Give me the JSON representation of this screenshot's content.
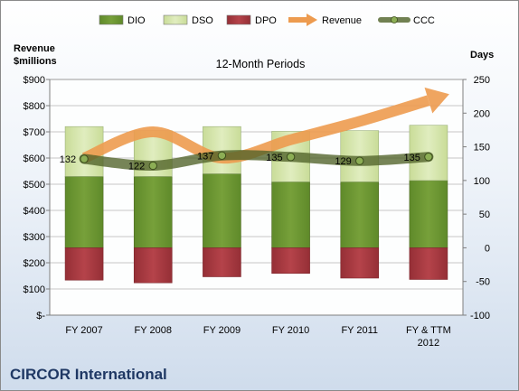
{
  "chart_data": {
    "type": "bar",
    "subtitle": "12-Month Periods",
    "company": "CIRCOR International",
    "left_axis": {
      "title_line1": "Revenue",
      "title_line2": "$millions",
      "ticks": [
        "$-",
        "$100",
        "$200",
        "$300",
        "$400",
        "$500",
        "$600",
        "$700",
        "$800",
        "$900"
      ],
      "ylim": [
        0,
        900
      ]
    },
    "right_axis": {
      "title": "Days",
      "ticks": [
        "-100",
        "-50",
        "0",
        "50",
        "100",
        "150",
        "200",
        "250"
      ],
      "ylim": [
        -100,
        250
      ]
    },
    "categories": [
      [
        "FY 2007"
      ],
      [
        "FY 2008"
      ],
      [
        "FY 2009"
      ],
      [
        "FY 2010"
      ],
      [
        "FY 2011"
      ],
      [
        "FY & TTM",
        "2012"
      ]
    ],
    "legend_position": "top",
    "series": [
      {
        "name": "DIO",
        "kind": "stacked-bar",
        "color": "#77a03a",
        "values": [
          106,
          106,
          110,
          98,
          98,
          100
        ]
      },
      {
        "name": "DSO",
        "kind": "stacked-bar",
        "color": "#e0edbf",
        "values": [
          74,
          68,
          70,
          75,
          76,
          82
        ]
      },
      {
        "name": "DPO",
        "kind": "stacked-bar",
        "color": "#b5434a",
        "values": [
          -48,
          -52,
          -43,
          -38,
          -45,
          -47
        ]
      },
      {
        "name": "Revenue",
        "kind": "trend-arrow",
        "color": "#ed9b4f",
        "values": [
          600,
          700,
          600,
          670,
          740,
          820
        ]
      },
      {
        "name": "CCC",
        "kind": "line",
        "color": "#4f6228",
        "values": [
          132,
          122,
          137,
          135,
          129,
          135
        ],
        "labels": [
          "132",
          "122",
          "137",
          "135",
          "129",
          "135"
        ]
      }
    ]
  }
}
